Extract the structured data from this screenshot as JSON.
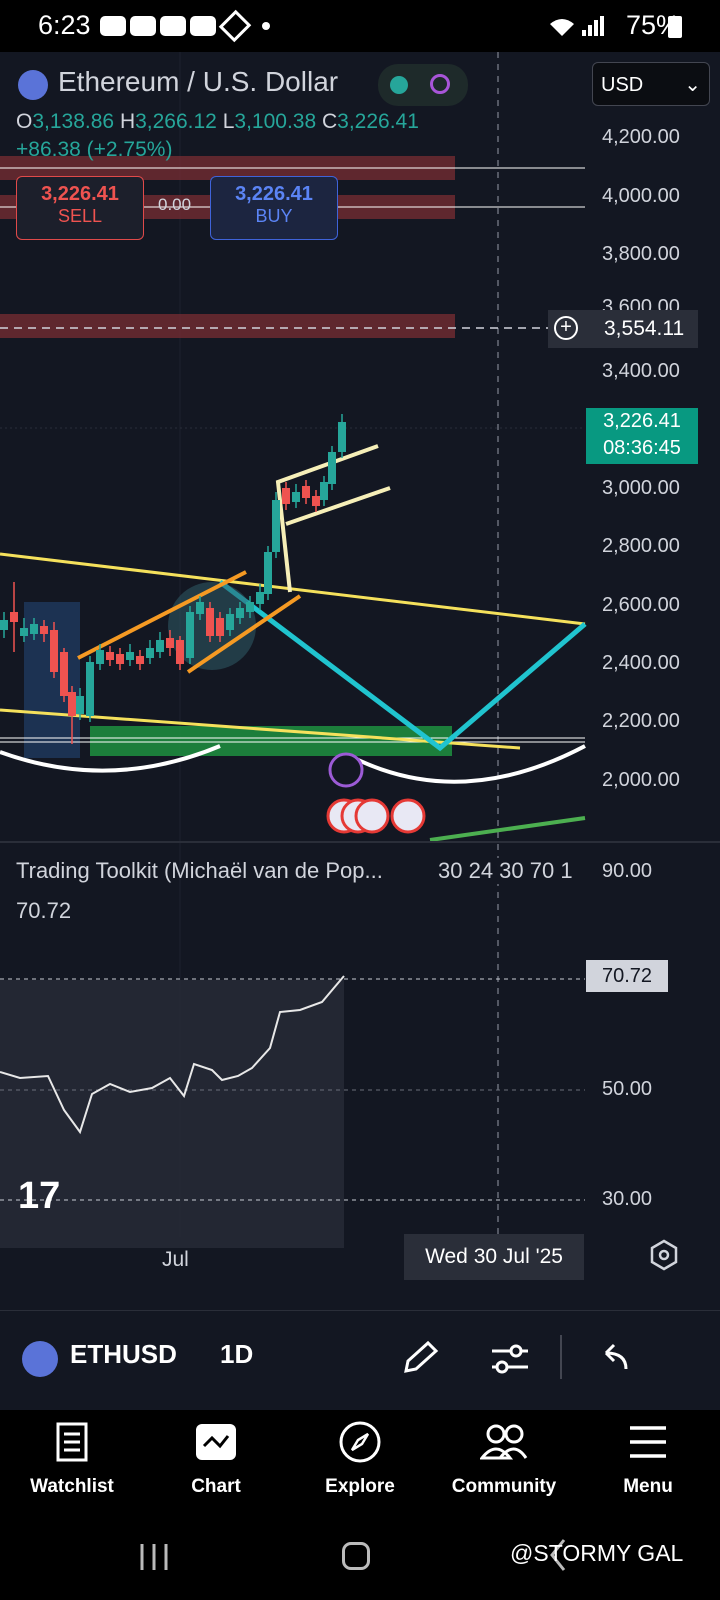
{
  "statusbar": {
    "time": "6:23",
    "battery": "75%"
  },
  "header": {
    "title": "Ethereum / U.S. Dollar",
    "ohlc": {
      "o_label": "O",
      "o": "3,138.86",
      "h_label": "H",
      "h": "3,266.12",
      "l_label": "L",
      "l": "3,100.38",
      "c_label": "C",
      "c": "3,226.41"
    },
    "change": "+86.38 (+2.75%)",
    "currency": "USD"
  },
  "trade": {
    "sell_price": "3,226.41",
    "sell_label": "SELL",
    "spread": "0.00",
    "buy_price": "3,226.41",
    "buy_label": "BUY"
  },
  "price_axis": {
    "labels": [
      "4,200.00",
      "4,000.00",
      "3,800.00",
      "3,600.00",
      "3,400.00",
      "3,000.00",
      "2,800.00",
      "2,600.00",
      "2,400.00",
      "2,200.00",
      "2,000.00"
    ],
    "crosshair_price": "3,554.11",
    "last_price": "3,226.41",
    "countdown": "08:36:45"
  },
  "indicator": {
    "title": "Trading Toolkit (Michaël van de Pop...",
    "params": "30 24 30 70 1",
    "value": "70.72",
    "axis_labels": [
      "90.00",
      "50.00",
      "30.00"
    ],
    "badge": "70.72"
  },
  "time_axis": {
    "label": "Jul",
    "crosshair_date": "Wed 30 Jul '25"
  },
  "toolbar": {
    "symbol": "ETHUSD",
    "timeframe": "1D"
  },
  "nav": {
    "items": [
      {
        "label": "Watchlist"
      },
      {
        "label": "Chart"
      },
      {
        "label": "Explore"
      },
      {
        "label": "Community"
      },
      {
        "label": "Menu"
      }
    ]
  },
  "watermark": "@STORMY GAL",
  "colors": {
    "bg": "#131722",
    "up": "#26a69a",
    "down": "#ef5350",
    "accent": "#089981"
  }
}
